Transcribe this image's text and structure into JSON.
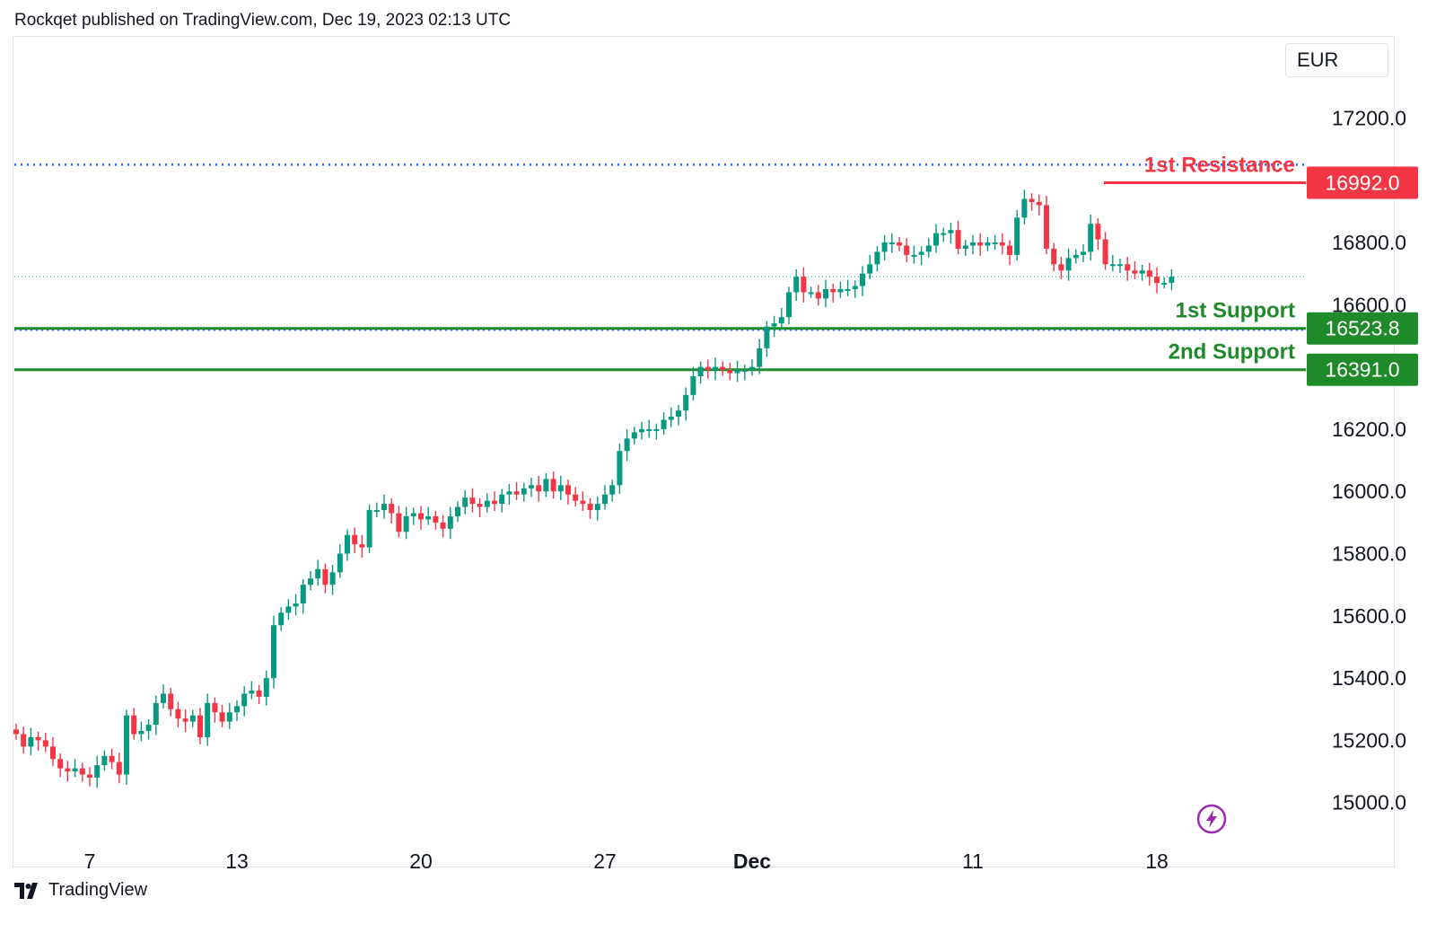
{
  "header": {
    "text": "Rockqet published on TradingView.com, Dec 19, 2023 02:13 UTC"
  },
  "currency": "EUR",
  "footer": {
    "brand": "TradingView",
    "logo_icon": "tradingview-logo-icon"
  },
  "colors": {
    "up": "#089981",
    "down": "#f23645",
    "support": "#1e8a2a",
    "resistance": "#f23645",
    "dotted": "#2962ff"
  },
  "chart_data": {
    "type": "candlestick",
    "title": "",
    "ylim": [
      14950,
      17400
    ],
    "y_ticks": [
      15000,
      15200,
      15400,
      15600,
      15800,
      16000,
      16200,
      16400,
      16600,
      16800,
      17000,
      17200
    ],
    "y_tick_labels": [
      "15000.0",
      "15200.0",
      "15400.0",
      "15600.0",
      "15800.0",
      "16000.0",
      "16200.0",
      "",
      "16600.0",
      "16800.0",
      "",
      "17200.0"
    ],
    "x_ticks": [
      {
        "label": "7",
        "index": 10,
        "bold": false
      },
      {
        "label": "13",
        "index": 30,
        "bold": false
      },
      {
        "label": "20",
        "index": 55,
        "bold": false
      },
      {
        "label": "27",
        "index": 80,
        "bold": false
      },
      {
        "label": "Dec",
        "index": 100,
        "bold": true
      },
      {
        "label": "11",
        "index": 130,
        "bold": false
      },
      {
        "label": "18",
        "index": 155,
        "bold": false
      }
    ],
    "levels": [
      {
        "name": "1st Resistance",
        "value": 16992.0,
        "label": "16992.0",
        "kind": "resistance"
      },
      {
        "name": "1st Support",
        "value": 16523.8,
        "label": "16523.8",
        "kind": "support"
      },
      {
        "name": "2nd Support",
        "value": 16391.0,
        "label": "16391.0",
        "kind": "support"
      }
    ],
    "dotted_level": 17050,
    "current_price": 16690,
    "closes": [
      15220,
      15180,
      15210,
      15200,
      15180,
      15140,
      15110,
      15100,
      15110,
      15090,
      15080,
      15120,
      15150,
      15130,
      15090,
      15280,
      15220,
      15230,
      15250,
      15320,
      15350,
      15300,
      15270,
      15260,
      15280,
      15210,
      15320,
      15290,
      15260,
      15290,
      15310,
      15350,
      15360,
      15340,
      15400,
      15570,
      15610,
      15630,
      15640,
      15700,
      15720,
      15750,
      15700,
      15740,
      15800,
      15860,
      15830,
      15820,
      15940,
      15940,
      15960,
      15930,
      15870,
      15920,
      15930,
      15910,
      15920,
      15900,
      15880,
      15920,
      15950,
      15980,
      15960,
      15950,
      15970,
      15960,
      15990,
      16000,
      15990,
      16010,
      16020,
      16000,
      16040,
      16000,
      16020,
      15990,
      15970,
      15960,
      15940,
      15960,
      15990,
      16020,
      16130,
      16170,
      16190,
      16200,
      16200,
      16200,
      16230,
      16240,
      16260,
      16310,
      16370,
      16400,
      16390,
      16400,
      16390,
      16380,
      16390,
      16390,
      16400,
      16460,
      16530,
      16540,
      16560,
      16640,
      16690,
      16640,
      16640,
      16620,
      16650,
      16640,
      16650,
      16650,
      16660,
      16700,
      16730,
      16770,
      16800,
      16800,
      16790,
      16760,
      16760,
      16770,
      16790,
      16830,
      16830,
      16840,
      16780,
      16790,
      16800,
      16790,
      16800,
      16800,
      16790,
      16760,
      16880,
      16940,
      16930,
      16920,
      16780,
      16730,
      16710,
      16750,
      16760,
      16770,
      16860,
      16810,
      16730,
      16730,
      16730,
      16710,
      16700,
      16710,
      16690,
      16670,
      16670,
      16690
    ]
  }
}
